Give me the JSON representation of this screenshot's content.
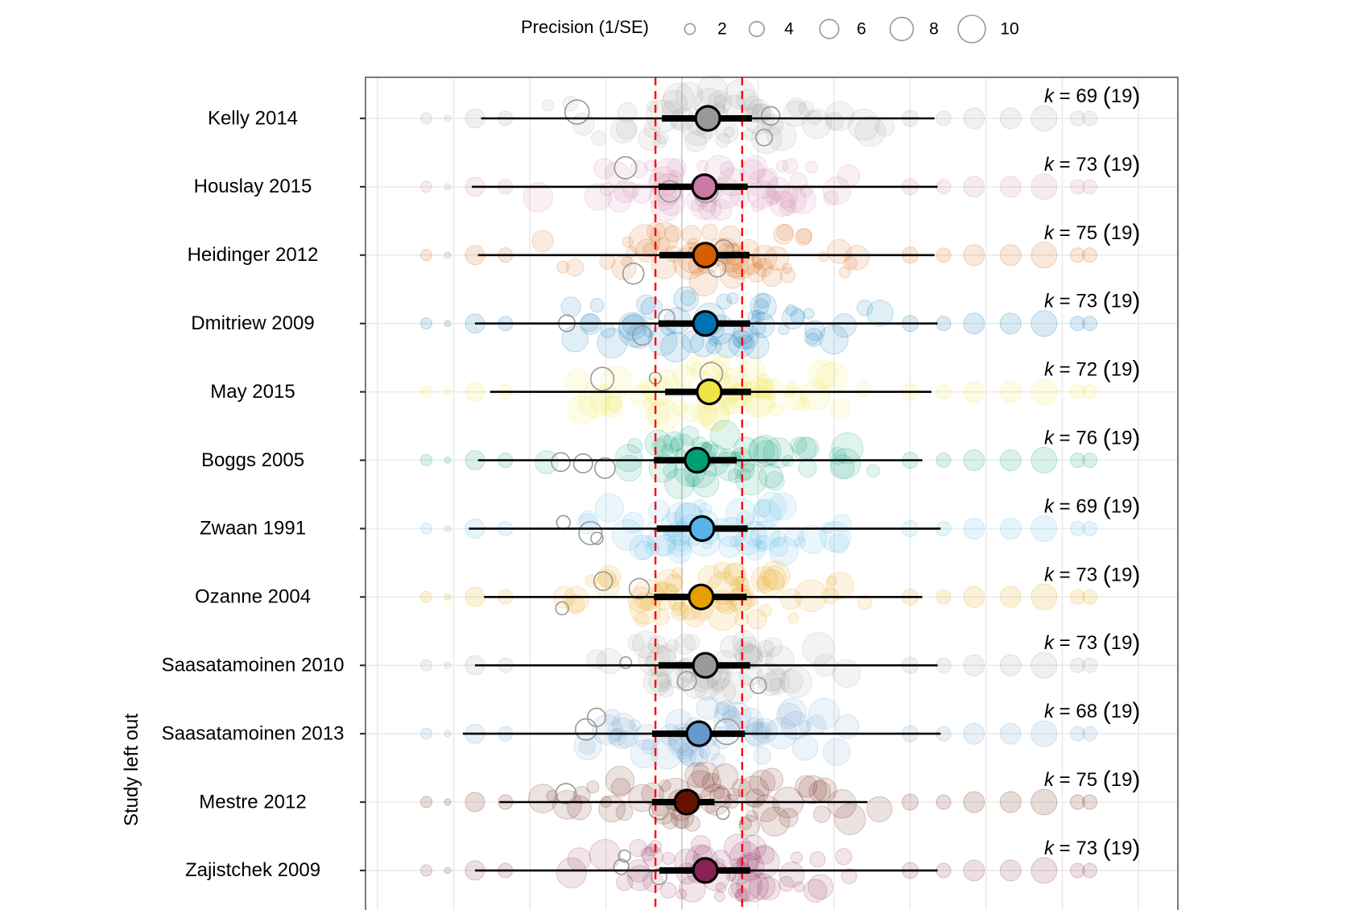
{
  "chart_data": {
    "type": "forest-leave-one-out",
    "title": "",
    "ylabel": "Study left out",
    "xlabel": "",
    "x_units_note": "gridline spacing 0.25 units, 0 at darker central gridline",
    "xlim": [
      -1.0,
      1.7
    ],
    "x_gridlines": [
      -1.0,
      -0.75,
      -0.5,
      -0.25,
      0,
      0.25,
      0.5,
      0.75,
      1.0,
      1.25,
      1.5
    ],
    "reference_lines": {
      "color": "#ff0000",
      "style": "dashed",
      "values": [
        -0.087,
        0.198
      ]
    },
    "legend": {
      "title": "Precision (1/SE)",
      "position": "top",
      "entries": [
        "2",
        "4",
        "6",
        "8",
        "10"
      ],
      "values": [
        2,
        4,
        6,
        8,
        10
      ]
    },
    "rows": [
      {
        "study": "Kelly 2014",
        "color": "#999999",
        "estimate": 0.085,
        "ci": [
          -0.066,
          0.23
        ],
        "pi": [
          -0.66,
          0.83
        ],
        "k": "69",
        "n": "19"
      },
      {
        "study": "Houslay 2015",
        "color": "#CC79A7",
        "estimate": 0.074,
        "ci": [
          -0.077,
          0.216
        ],
        "pi": [
          -0.69,
          0.84
        ],
        "k": "73",
        "n": "19"
      },
      {
        "study": "Heidinger 2012",
        "color": "#D55E00",
        "estimate": 0.077,
        "ci": [
          -0.074,
          0.222
        ],
        "pi": [
          -0.67,
          0.83
        ],
        "k": "75",
        "n": "19"
      },
      {
        "study": "Dmitriew 2009",
        "color": "#0072B2",
        "estimate": 0.077,
        "ci": [
          -0.077,
          0.224
        ],
        "pi": [
          -0.68,
          0.84
        ],
        "k": "73",
        "n": "19"
      },
      {
        "study": "May 2015",
        "color": "#F0E442",
        "estimate": 0.09,
        "ci": [
          -0.055,
          0.227
        ],
        "pi": [
          -0.63,
          0.82
        ],
        "k": "72",
        "n": "19"
      },
      {
        "study": "Boggs 2005",
        "color": "#009E73",
        "estimate": 0.05,
        "ci": [
          -0.092,
          0.18
        ],
        "pi": [
          -0.67,
          0.79
        ],
        "k": "76",
        "n": "19"
      },
      {
        "study": "Zwaan 1991",
        "color": "#56B4E9",
        "estimate": 0.066,
        "ci": [
          -0.083,
          0.216
        ],
        "pi": [
          -0.7,
          0.85
        ],
        "k": "69",
        "n": "19"
      },
      {
        "study": "Ozanne 2004",
        "color": "#E69F00",
        "estimate": 0.063,
        "ci": [
          -0.092,
          0.213
        ],
        "pi": [
          -0.65,
          0.79
        ],
        "k": "73",
        "n": "19"
      },
      {
        "study": "Saasatamoinen 2010",
        "color": "#999999",
        "estimate": 0.077,
        "ci": [
          -0.077,
          0.224
        ],
        "pi": [
          -0.68,
          0.84
        ],
        "k": "73",
        "n": "19"
      },
      {
        "study": "Saasatamoinen 2013",
        "color": "#6699CC",
        "estimate": 0.056,
        "ci": [
          -0.098,
          0.207
        ],
        "pi": [
          -0.72,
          0.85
        ],
        "k": "68",
        "n": "19"
      },
      {
        "study": "Mestre 2012",
        "color": "#661100",
        "estimate": 0.016,
        "ci": [
          -0.098,
          0.107
        ],
        "pi": [
          -0.6,
          0.61
        ],
        "k": "75",
        "n": "19"
      },
      {
        "study": "Zajistchek 2009",
        "color": "#882255",
        "estimate": 0.077,
        "ci": [
          -0.074,
          0.224
        ],
        "pi": [
          -0.68,
          0.84
        ],
        "k": "73",
        "n": "19"
      }
    ],
    "k_label_prefix": "k",
    "k_label_equals": " = "
  }
}
